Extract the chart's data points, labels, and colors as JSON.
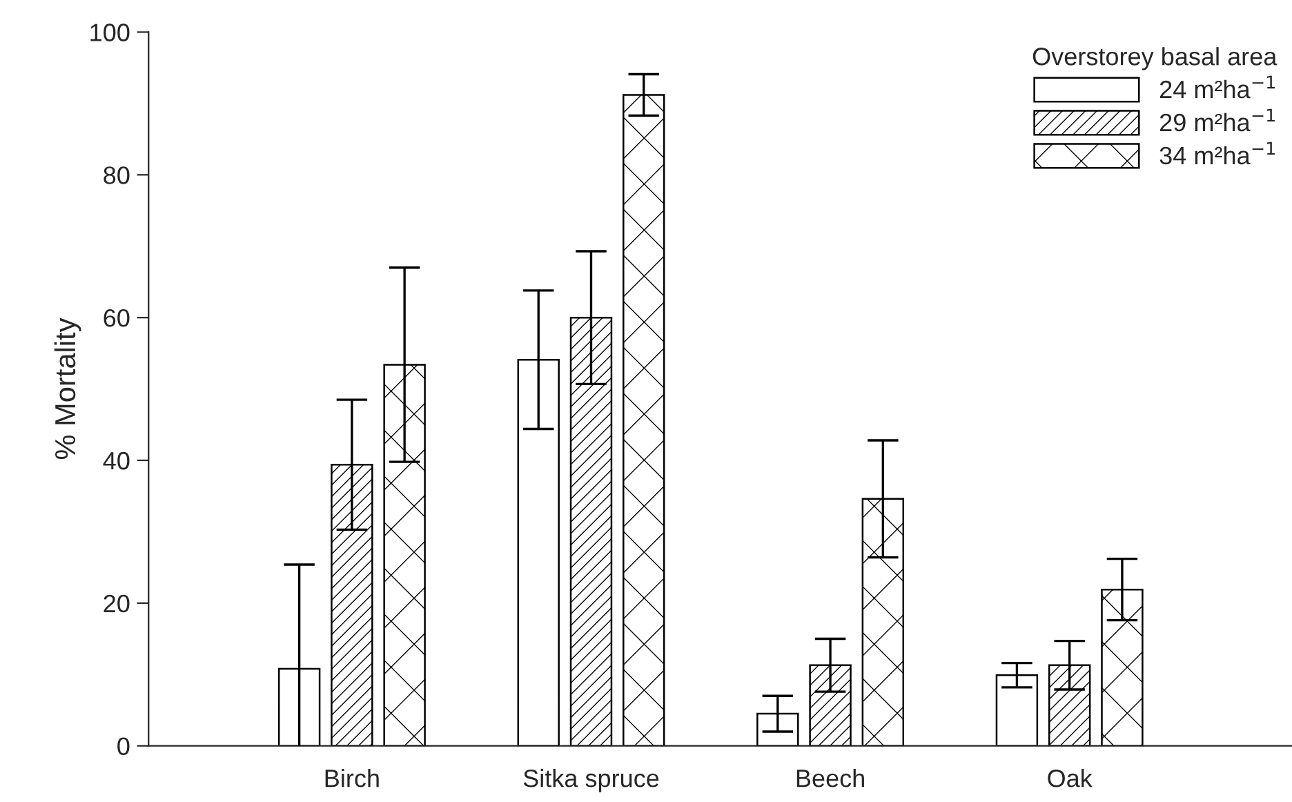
{
  "chart_data": {
    "type": "bar",
    "ylabel": "% Mortality",
    "legend_title": "Overstorey basal area",
    "categories": [
      "Birch",
      "Sitka spruce",
      "Beech",
      "Oak"
    ],
    "series": [
      {
        "name": "24 m²ha$^{−1}$",
        "color": "#ffffff",
        "values": [
          10.8,
          54.1,
          4.5,
          9.9
        ],
        "errors": [
          14.6,
          9.7,
          2.5,
          1.7
        ]
      },
      {
        "name": "29 m²ha$^{−1}$",
        "color": "#000000",
        "values": [
          39.4,
          60.0,
          11.3,
          11.3
        ],
        "errors": [
          9.1,
          9.3,
          3.7,
          3.4
        ]
      },
      {
        "name": "34 m²ha$^{−1}$",
        "color": "#000000",
        "values": [
          53.4,
          91.2,
          34.6,
          21.9
        ],
        "errors": [
          13.6,
          2.9,
          8.2,
          4.3
        ]
      }
    ],
    "ylim": [
      0,
      100
    ],
    "yticks": [
      0,
      20,
      40,
      60,
      80,
      100
    ],
    "grid": false,
    "legend": "top right"
  }
}
